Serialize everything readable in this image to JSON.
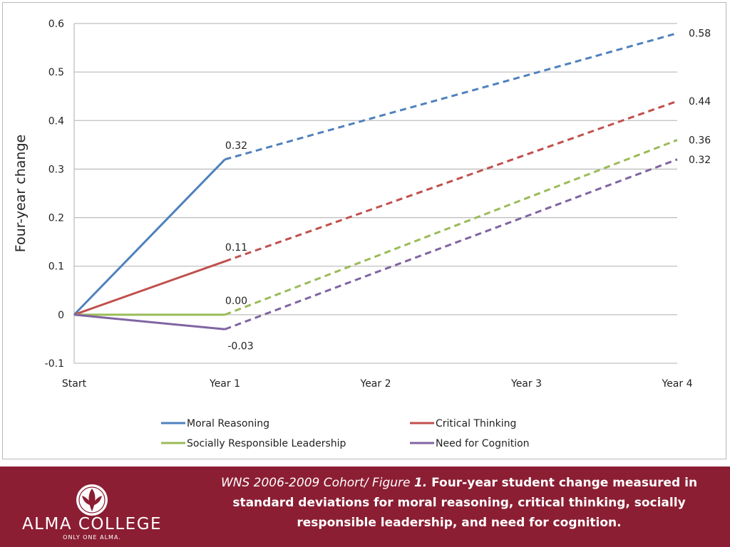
{
  "chart_data": {
    "type": "line",
    "categories": [
      "Start",
      "Year 1",
      "Year 2",
      "Year 3",
      "Year 4"
    ],
    "ylabel": "Four-year change",
    "ylim": [
      -0.1,
      0.6
    ],
    "yticks": [
      "-0.1",
      "0",
      "0.1",
      "0.2",
      "0.3",
      "0.4",
      "0.5",
      "0.6"
    ],
    "grid": true,
    "legend_position": "bottom",
    "series": [
      {
        "name": "Moral Reasoning",
        "color": "#4f81bd",
        "values": [
          0,
          0.32,
          0.407,
          0.493,
          0.58
        ],
        "labels": {
          "Year 1": "0.32",
          "Year 4": "0.58"
        }
      },
      {
        "name": "Critical Thinking",
        "color": "#c0504d",
        "values": [
          0,
          0.11,
          0.22,
          0.33,
          0.44
        ],
        "labels": {
          "Year 1": "0.11",
          "Year 4": "0.44"
        }
      },
      {
        "name": "Socially Responsible Leadership",
        "color": "#9bbb59",
        "values": [
          0,
          0.0,
          0.12,
          0.24,
          0.36
        ],
        "labels": {
          "Year 1": "0.00",
          "Year 4": "0.36"
        }
      },
      {
        "name": "Need for Cognition",
        "color": "#8064a2",
        "values": [
          0,
          -0.03,
          0.087,
          0.203,
          0.32
        ],
        "labels": {
          "Year 1": "-0.03",
          "Year 4": "0.32"
        }
      }
    ]
  },
  "footer": {
    "background": "#8b1e33",
    "logo": {
      "name": "ALMA COLLEGE",
      "tagline": "ONLY ONE ALMA."
    },
    "caption": {
      "source": "WNS 2006-2009 Cohort/ Figure ",
      "figure_number": "1.",
      "text": " Four-year student change measured in standard deviations for moral reasoning, critical thinking, socially responsible leadership, and need for cognition."
    }
  }
}
